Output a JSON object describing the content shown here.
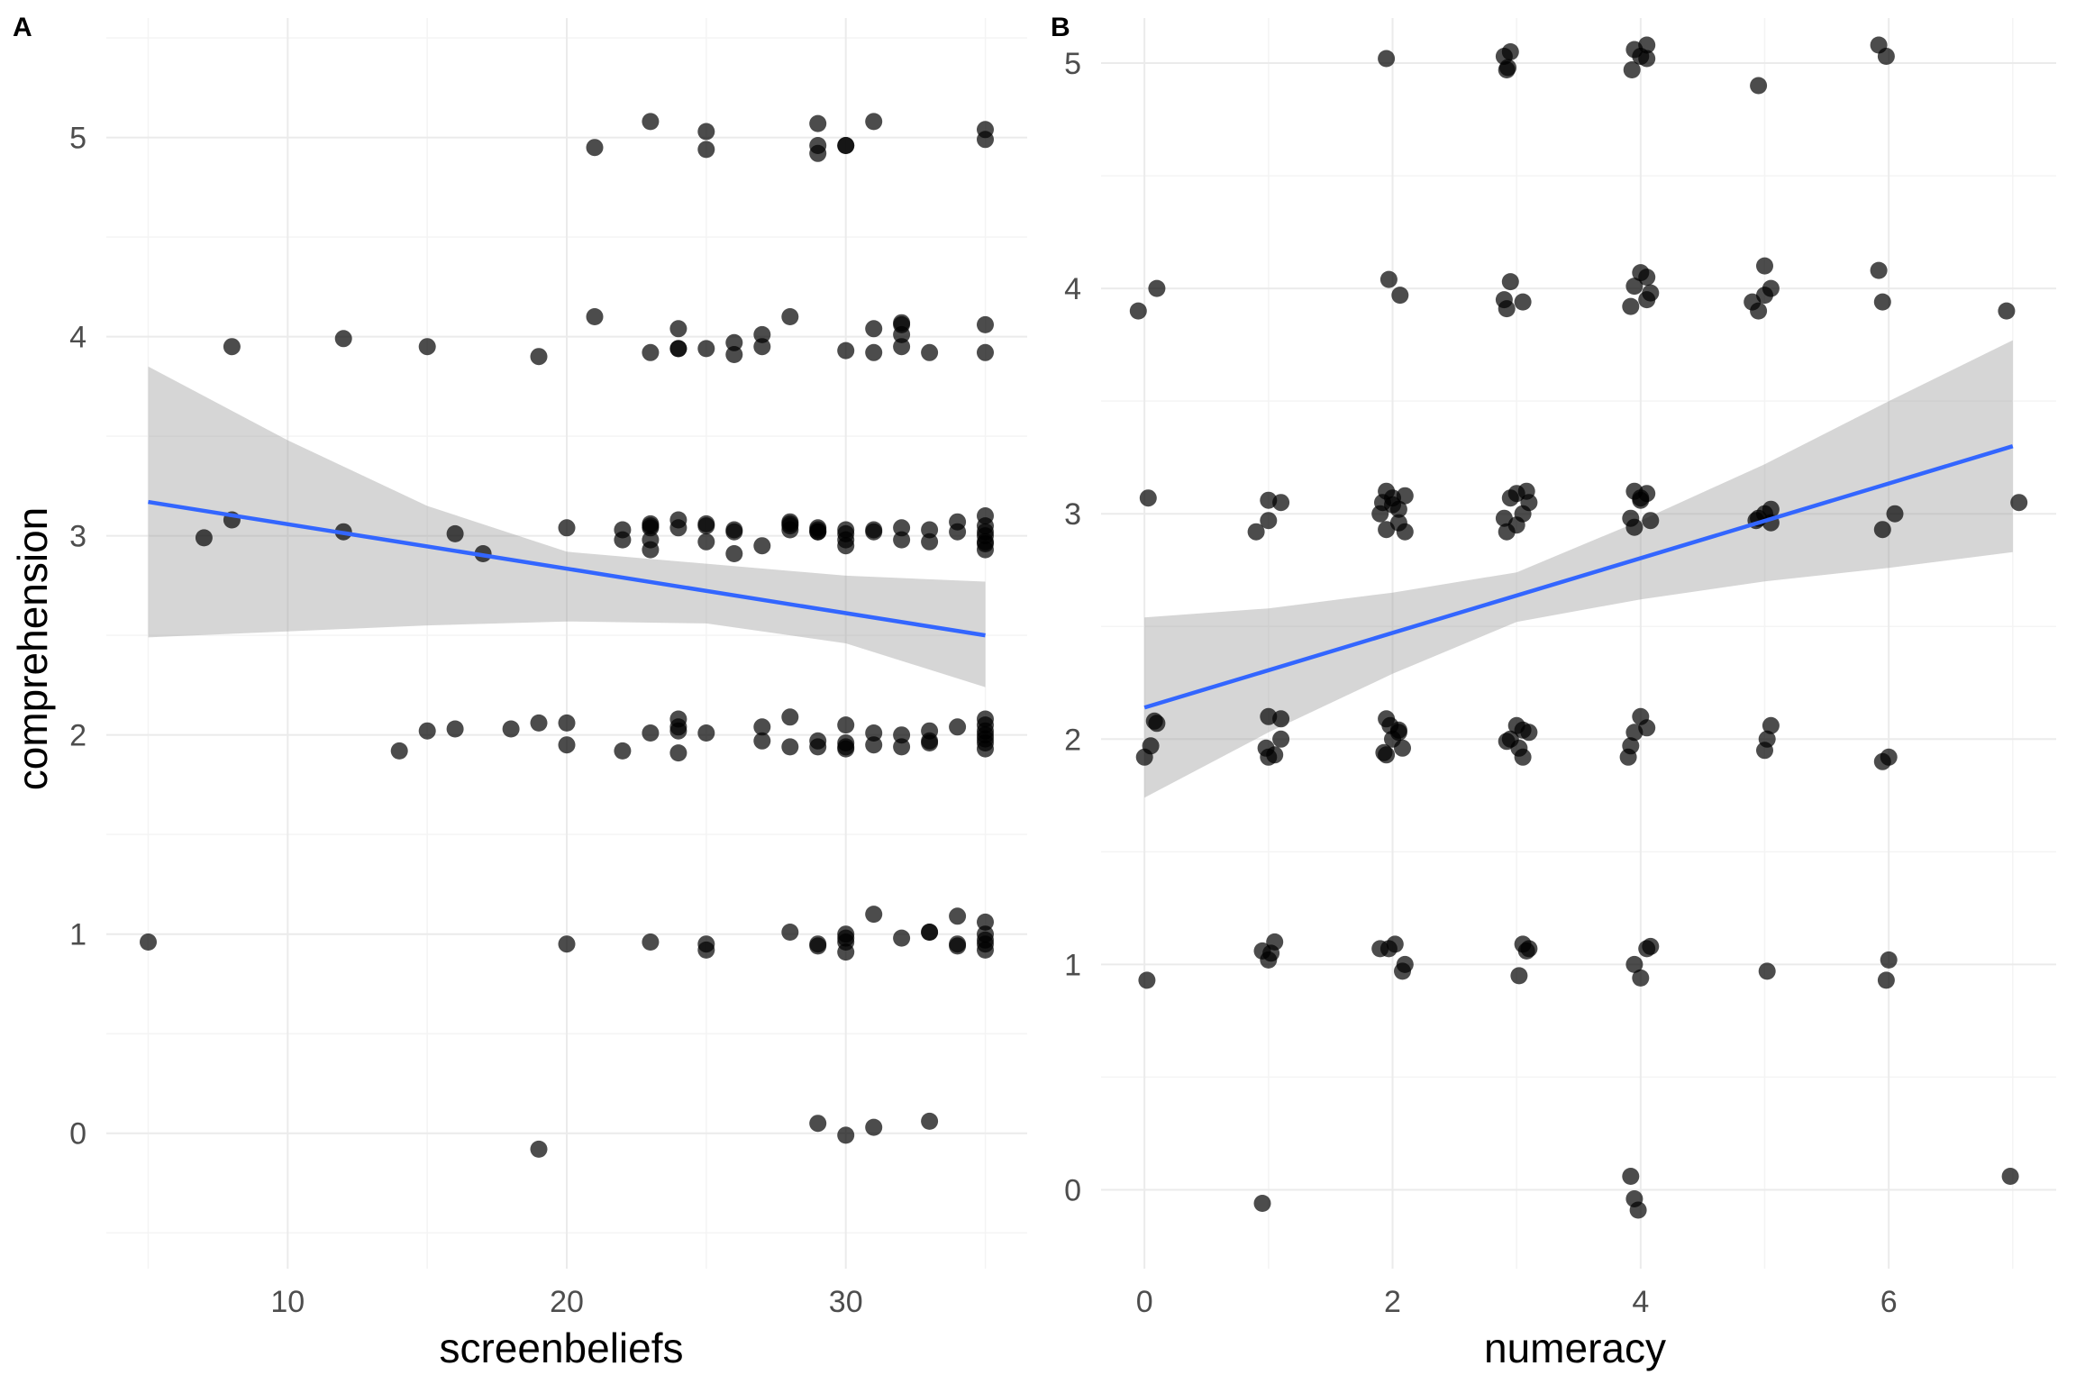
{
  "colors": {
    "point": "#000000",
    "line": "#3366ff",
    "band": "#999999"
  },
  "chart_data": [
    {
      "type": "scatter",
      "panel_label": "A",
      "xlabel": "screenbeliefs",
      "ylabel": "comprehension",
      "xlim": [
        3.5,
        36.5
      ],
      "ylim": [
        -0.68,
        5.6
      ],
      "xticks": [
        10,
        20,
        30
      ],
      "yticks": [
        0,
        1,
        2,
        3,
        4,
        5
      ],
      "grid": true,
      "fit": {
        "method": "lm",
        "x": [
          5,
          35
        ],
        "y": [
          3.17,
          2.5
        ]
      },
      "ci_band": {
        "x": [
          5,
          10,
          15,
          20,
          25,
          30,
          35
        ],
        "upper": [
          3.85,
          3.48,
          3.15,
          2.92,
          2.86,
          2.8,
          2.77
        ],
        "lower": [
          2.49,
          2.52,
          2.55,
          2.57,
          2.56,
          2.46,
          2.24
        ]
      },
      "points": [
        [
          5,
          0.96
        ],
        [
          20,
          0.95
        ],
        [
          23,
          0.96
        ],
        [
          25,
          0.95
        ],
        [
          25,
          0.92
        ],
        [
          28,
          1.01
        ],
        [
          29,
          0.95
        ],
        [
          29,
          0.94
        ],
        [
          30,
          1.0
        ],
        [
          30,
          0.96
        ],
        [
          30,
          0.91
        ],
        [
          30,
          0.98
        ],
        [
          31,
          1.1
        ],
        [
          32,
          0.98
        ],
        [
          33,
          1.01
        ],
        [
          33,
          1.01
        ],
        [
          34,
          1.09
        ],
        [
          34,
          0.95
        ],
        [
          34,
          0.94
        ],
        [
          35,
          1.06
        ],
        [
          35,
          1.0
        ],
        [
          35,
          0.92
        ],
        [
          35,
          0.97
        ],
        [
          35,
          0.95
        ],
        [
          14,
          1.92
        ],
        [
          15,
          2.02
        ],
        [
          16,
          2.03
        ],
        [
          18,
          2.03
        ],
        [
          19,
          2.06
        ],
        [
          20,
          2.06
        ],
        [
          20,
          1.95
        ],
        [
          22,
          1.92
        ],
        [
          23,
          2.01
        ],
        [
          24,
          2.08
        ],
        [
          24,
          2.04
        ],
        [
          24,
          2.02
        ],
        [
          24,
          1.91
        ],
        [
          25,
          2.01
        ],
        [
          27,
          2.04
        ],
        [
          27,
          1.97
        ],
        [
          28,
          2.09
        ],
        [
          28,
          1.94
        ],
        [
          29,
          1.97
        ],
        [
          29,
          1.94
        ],
        [
          30,
          2.05
        ],
        [
          30,
          1.96
        ],
        [
          30,
          1.93
        ],
        [
          30,
          1.94
        ],
        [
          31,
          2.01
        ],
        [
          31,
          1.95
        ],
        [
          32,
          2.0
        ],
        [
          32,
          1.94
        ],
        [
          33,
          2.02
        ],
        [
          33,
          1.96
        ],
        [
          33,
          1.97
        ],
        [
          34,
          2.04
        ],
        [
          35,
          2.08
        ],
        [
          35,
          2.05
        ],
        [
          35,
          2.0
        ],
        [
          35,
          1.96
        ],
        [
          35,
          1.93
        ],
        [
          35,
          2.02
        ],
        [
          35,
          1.98
        ],
        [
          7,
          2.99
        ],
        [
          8,
          3.08
        ],
        [
          12,
          3.02
        ],
        [
          16,
          3.01
        ],
        [
          17,
          2.91
        ],
        [
          20,
          3.04
        ],
        [
          22,
          2.98
        ],
        [
          22,
          3.03
        ],
        [
          23,
          3.06
        ],
        [
          23,
          3.04
        ],
        [
          23,
          3.05
        ],
        [
          23,
          2.98
        ],
        [
          23,
          2.93
        ],
        [
          24,
          3.08
        ],
        [
          24,
          3.04
        ],
        [
          25,
          3.06
        ],
        [
          25,
          2.97
        ],
        [
          25,
          3.05
        ],
        [
          26,
          3.03
        ],
        [
          26,
          3.02
        ],
        [
          26,
          2.91
        ],
        [
          27,
          2.95
        ],
        [
          28,
          3.07
        ],
        [
          28,
          3.03
        ],
        [
          28,
          3.05
        ],
        [
          28,
          3.06
        ],
        [
          29,
          3.04
        ],
        [
          29,
          3.02
        ],
        [
          29,
          3.03
        ],
        [
          29,
          3.02
        ],
        [
          30,
          3.03
        ],
        [
          30,
          2.98
        ],
        [
          30,
          2.95
        ],
        [
          30,
          3.01
        ],
        [
          31,
          3.02
        ],
        [
          31,
          3.03
        ],
        [
          32,
          3.04
        ],
        [
          32,
          2.98
        ],
        [
          33,
          3.03
        ],
        [
          33,
          2.97
        ],
        [
          34,
          3.07
        ],
        [
          34,
          3.02
        ],
        [
          35,
          3.1
        ],
        [
          35,
          3.05
        ],
        [
          35,
          3.0
        ],
        [
          35,
          2.96
        ],
        [
          35,
          2.93
        ],
        [
          35,
          3.02
        ],
        [
          35,
          2.97
        ],
        [
          8,
          3.95
        ],
        [
          12,
          3.99
        ],
        [
          15,
          3.95
        ],
        [
          19,
          3.9
        ],
        [
          21,
          4.1
        ],
        [
          23,
          3.92
        ],
        [
          24,
          4.04
        ],
        [
          24,
          3.94
        ],
        [
          24,
          3.94
        ],
        [
          25,
          3.94
        ],
        [
          26,
          3.97
        ],
        [
          26,
          3.91
        ],
        [
          27,
          4.01
        ],
        [
          27,
          3.95
        ],
        [
          28,
          4.1
        ],
        [
          30,
          3.93
        ],
        [
          31,
          4.04
        ],
        [
          31,
          3.92
        ],
        [
          32,
          4.07
        ],
        [
          32,
          4.06
        ],
        [
          32,
          4.01
        ],
        [
          32,
          3.95
        ],
        [
          33,
          3.92
        ],
        [
          35,
          4.06
        ],
        [
          35,
          3.92
        ],
        [
          21,
          4.95
        ],
        [
          23,
          5.08
        ],
        [
          25,
          5.03
        ],
        [
          25,
          4.94
        ],
        [
          29,
          5.07
        ],
        [
          29,
          4.96
        ],
        [
          29,
          4.92
        ],
        [
          30,
          4.96
        ],
        [
          30,
          4.96
        ],
        [
          31,
          5.08
        ],
        [
          35,
          5.04
        ],
        [
          35,
          4.99
        ],
        [
          19,
          -0.08
        ],
        [
          29,
          0.05
        ],
        [
          30,
          -0.01
        ],
        [
          31,
          0.03
        ],
        [
          33,
          0.06
        ]
      ]
    },
    {
      "type": "scatter",
      "panel_label": "B",
      "xlabel": "numeracy",
      "ylabel": "",
      "xlim": [
        -0.35,
        7.35
      ],
      "ylim": [
        -0.35,
        5.2
      ],
      "xticks": [
        0,
        2,
        4,
        6
      ],
      "yticks": [
        0,
        1,
        2,
        3,
        4,
        5
      ],
      "grid": true,
      "fit": {
        "method": "lm",
        "x": [
          0,
          7
        ],
        "y": [
          2.14,
          3.3
        ]
      },
      "ci_band": {
        "x": [
          0,
          1,
          2,
          3,
          4,
          5,
          6,
          7
        ],
        "upper": [
          2.54,
          2.58,
          2.65,
          2.74,
          2.97,
          3.22,
          3.5,
          3.77
        ],
        "lower": [
          1.74,
          2.03,
          2.29,
          2.52,
          2.62,
          2.7,
          2.76,
          2.83
        ]
      },
      "points": [
        [
          0,
          1.92
        ],
        [
          0.05,
          1.97
        ],
        [
          0.1,
          2.07
        ],
        [
          0.08,
          2.08
        ],
        [
          0.02,
          0.93
        ],
        [
          -0.05,
          3.9
        ],
        [
          0.1,
          4.0
        ],
        [
          0.03,
          3.07
        ],
        [
          1,
          3.06
        ],
        [
          1.1,
          3.05
        ],
        [
          0.9,
          2.92
        ],
        [
          1,
          2.97
        ],
        [
          1,
          2.1
        ],
        [
          1.1,
          2.09
        ],
        [
          0.98,
          1.96
        ],
        [
          1.05,
          1.93
        ],
        [
          1.1,
          2.0
        ],
        [
          1,
          1.92
        ],
        [
          0.95,
          1.06
        ],
        [
          1.05,
          1.1
        ],
        [
          1,
          1.02
        ],
        [
          1.02,
          1.05
        ],
        [
          0.95,
          -0.06
        ],
        [
          1.95,
          3.1
        ],
        [
          2.1,
          3.08
        ],
        [
          2,
          3.04
        ],
        [
          1.9,
          3.0
        ],
        [
          2.05,
          2.96
        ],
        [
          1.95,
          2.93
        ],
        [
          2.1,
          2.92
        ],
        [
          2,
          3.07
        ],
        [
          2.05,
          3.02
        ],
        [
          1.92,
          3.05
        ],
        [
          1.95,
          2.09
        ],
        [
          2.05,
          2.04
        ],
        [
          2,
          2.0
        ],
        [
          1.93,
          1.94
        ],
        [
          2.08,
          1.96
        ],
        [
          1.95,
          1.93
        ],
        [
          1.98,
          2.06
        ],
        [
          2.05,
          2.03
        ],
        [
          1.9,
          1.07
        ],
        [
          2.02,
          1.09
        ],
        [
          2.1,
          1.0
        ],
        [
          1.97,
          1.07
        ],
        [
          2.08,
          0.97
        ],
        [
          1.95,
          5.02
        ],
        [
          1.97,
          4.04
        ],
        [
          2.06,
          3.97
        ],
        [
          2.9,
          5.03
        ],
        [
          2.95,
          5.05
        ],
        [
          2.93,
          4.98
        ],
        [
          2.92,
          4.97
        ],
        [
          2.95,
          4.03
        ],
        [
          2.9,
          3.95
        ],
        [
          3.05,
          3.94
        ],
        [
          2.92,
          3.91
        ],
        [
          3,
          3.09
        ],
        [
          3.08,
          3.1
        ],
        [
          2.95,
          3.07
        ],
        [
          3.05,
          3.0
        ],
        [
          2.9,
          2.98
        ],
        [
          3,
          2.95
        ],
        [
          2.92,
          2.92
        ],
        [
          3.1,
          3.05
        ],
        [
          3,
          2.06
        ],
        [
          3.05,
          2.04
        ],
        [
          3.1,
          2.03
        ],
        [
          2.95,
          2.0
        ],
        [
          3.02,
          1.96
        ],
        [
          3.05,
          1.92
        ],
        [
          2.92,
          1.99
        ],
        [
          3.1,
          1.07
        ],
        [
          3.05,
          1.09
        ],
        [
          3.08,
          1.06
        ],
        [
          3.02,
          0.95
        ],
        [
          3.95,
          5.06
        ],
        [
          4.05,
          5.08
        ],
        [
          3.93,
          4.97
        ],
        [
          4,
          5.03
        ],
        [
          4.05,
          5.02
        ],
        [
          4,
          4.07
        ],
        [
          4.05,
          4.05
        ],
        [
          3.95,
          4.01
        ],
        [
          4.08,
          3.98
        ],
        [
          3.92,
          3.92
        ],
        [
          4.05,
          3.95
        ],
        [
          3.95,
          3.1
        ],
        [
          4.05,
          3.09
        ],
        [
          4,
          3.06
        ],
        [
          3.92,
          2.98
        ],
        [
          4.08,
          2.97
        ],
        [
          3.95,
          2.94
        ],
        [
          4,
          3.07
        ],
        [
          4,
          2.1
        ],
        [
          4.05,
          2.05
        ],
        [
          3.95,
          2.03
        ],
        [
          3.92,
          1.97
        ],
        [
          3.9,
          1.92
        ],
        [
          4.05,
          1.07
        ],
        [
          3.95,
          1.0
        ],
        [
          4,
          0.94
        ],
        [
          4.08,
          1.08
        ],
        [
          3.92,
          0.06
        ],
        [
          3.95,
          -0.04
        ],
        [
          3.98,
          -0.09
        ],
        [
          4.95,
          4.9
        ],
        [
          5,
          4.1
        ],
        [
          5.05,
          4.0
        ],
        [
          4.9,
          3.94
        ],
        [
          5,
          3.97
        ],
        [
          4.95,
          3.9
        ],
        [
          5.05,
          3.02
        ],
        [
          4.95,
          2.98
        ],
        [
          5,
          3.0
        ],
        [
          5.05,
          2.96
        ],
        [
          4.93,
          2.97
        ],
        [
          5.05,
          2.06
        ],
        [
          5.02,
          2.0
        ],
        [
          5,
          1.95
        ],
        [
          5.02,
          0.97
        ],
        [
          5.92,
          5.08
        ],
        [
          5.98,
          5.03
        ],
        [
          5.92,
          4.08
        ],
        [
          5.95,
          3.94
        ],
        [
          5.95,
          2.93
        ],
        [
          6.05,
          3.0
        ],
        [
          5.95,
          1.9
        ],
        [
          6,
          1.92
        ],
        [
          6,
          1.02
        ],
        [
          5.98,
          0.93
        ],
        [
          6.95,
          3.9
        ],
        [
          7.05,
          3.05
        ],
        [
          6.98,
          0.06
        ]
      ]
    }
  ]
}
